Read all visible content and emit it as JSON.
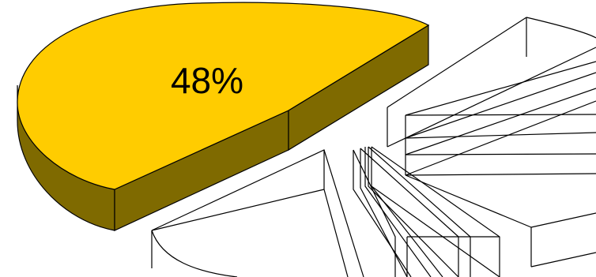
{
  "chart_data": {
    "type": "pie",
    "style": "3d-exploded",
    "slices": [
      {
        "value": 48,
        "data_label": "48%",
        "fill": "#FFCC00",
        "side_fill": "#7F6A00",
        "outline": "#000000",
        "highlighted": true
      },
      {
        "value": 10,
        "data_label": "",
        "fill": "#FFFFFF",
        "side_fill": "#FFFFFF",
        "outline": "#000000",
        "highlighted": false
      },
      {
        "value": 11,
        "data_label": "",
        "fill": "#FFFFFF",
        "side_fill": "#FFFFFF",
        "outline": "#000000",
        "highlighted": false
      },
      {
        "value": 31,
        "data_label": "",
        "fill": "#FFFFFF",
        "side_fill": "#FFFFFF",
        "outline": "#000000",
        "highlighted": false
      }
    ],
    "legend": "none",
    "title": ""
  },
  "colors": {
    "highlight_top": "#FFCC00",
    "highlight_side": "#7F6A00",
    "outline": "#000000",
    "background": "#FFFFFF"
  }
}
